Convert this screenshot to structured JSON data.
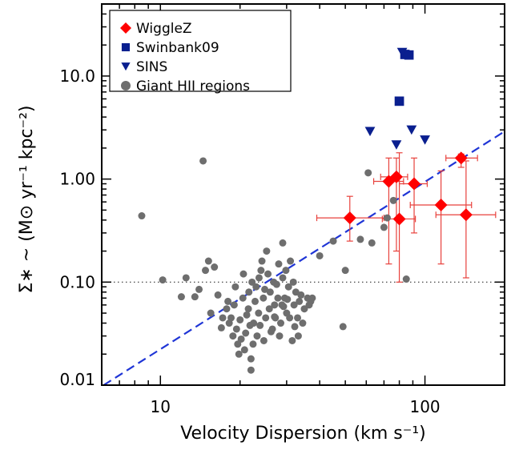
{
  "colors": {
    "wigglez": "#ff0000",
    "wigglez_errorbar": "#e8413c",
    "swinbank09": "#0a1f8f",
    "sins": "#0a1f8f",
    "giant_hii": "#6e6e6e",
    "fit_line": "#1f35d6",
    "reference_line": "#333333",
    "axes": "#000000"
  },
  "chart_data": {
    "type": "scatter",
    "title": "",
    "xlabel": "Velocity Dispersion (km s⁻¹)",
    "ylabel": "Σ∗ ~ (M⊙ yr⁻¹ kpc⁻²)",
    "x_scale": "log",
    "y_scale": "log",
    "xlim": [
      6,
      200
    ],
    "ylim": [
      0.01,
      50
    ],
    "x_ticks": [
      {
        "value": 10,
        "label": "10"
      },
      {
        "value": 100,
        "label": "100"
      }
    ],
    "y_ticks": [
      {
        "value": 0.01,
        "label": "0.01"
      },
      {
        "value": 0.1,
        "label": "0.10"
      },
      {
        "value": 1,
        "label": "1.00"
      },
      {
        "value": 10,
        "label": "10.0"
      }
    ],
    "grid": false,
    "legend_position": "top-left",
    "legend": [
      {
        "label": "WiggleZ",
        "marker": "diamond",
        "color": "#ff0000"
      },
      {
        "label": "Swinbank09",
        "marker": "square",
        "color": "#0a1f8f"
      },
      {
        "label": "SINS",
        "marker": "triangle-down",
        "color": "#0a1f8f"
      },
      {
        "label": "Giant HII regions",
        "marker": "circle",
        "color": "#6e6e6e"
      }
    ],
    "reference_lines": [
      {
        "type": "horizontal",
        "y": 0.1,
        "style": "dotted",
        "color": "#333333"
      },
      {
        "type": "fit",
        "style": "dashed",
        "color": "#1f35d6",
        "points": [
          [
            6.1,
            0.01
          ],
          [
            200,
            2.9
          ]
        ]
      }
    ],
    "series": [
      {
        "name": "WiggleZ",
        "marker": "diamond",
        "color": "#ff0000",
        "points": [
          {
            "x": 52,
            "y": 0.42,
            "xerr": [
              39,
              70
            ],
            "yerr": [
              0.25,
              0.68
            ]
          },
          {
            "x": 73,
            "y": 0.95,
            "xerr": [
              64,
              83
            ],
            "yerr": [
              0.15,
              1.6
            ]
          },
          {
            "x": 78,
            "y": 1.05,
            "xerr": [
              68,
              86
            ],
            "yerr": [
              0.2,
              1.6
            ]
          },
          {
            "x": 80,
            "y": 0.41,
            "xerr": [
              69,
              92
            ],
            "yerr": [
              0.1,
              1.8
            ]
          },
          {
            "x": 91,
            "y": 0.9,
            "xerr": [
              80,
              102
            ],
            "yerr": [
              0.3,
              1.6
            ]
          },
          {
            "x": 115,
            "y": 0.56,
            "xerr": [
              88,
              150
            ],
            "yerr": [
              0.15,
              1.2
            ]
          },
          {
            "x": 137,
            "y": 1.6,
            "xerr": [
              120,
              158
            ],
            "yerr": [
              1.3,
              1.75
            ]
          },
          {
            "x": 143,
            "y": 0.45,
            "xerr": [
              110,
              185
            ],
            "yerr": [
              0.11,
              1.5
            ]
          }
        ]
      },
      {
        "name": "Swinbank09",
        "marker": "square",
        "color": "#0a1f8f",
        "points": [
          {
            "x": 80,
            "y": 5.7
          },
          {
            "x": 84,
            "y": 16.2
          },
          {
            "x": 87,
            "y": 16.0
          }
        ]
      },
      {
        "name": "SINS",
        "marker": "triangle-down",
        "color": "#0a1f8f",
        "points": [
          {
            "x": 62,
            "y": 2.9
          },
          {
            "x": 78,
            "y": 2.15
          },
          {
            "x": 82,
            "y": 17.0
          },
          {
            "x": 89,
            "y": 3.0
          },
          {
            "x": 100,
            "y": 2.4
          }
        ]
      },
      {
        "name": "Giant HII regions",
        "marker": "circle",
        "color": "#6e6e6e",
        "points": [
          {
            "x": 8.5,
            "y": 0.44
          },
          {
            "x": 14.5,
            "y": 1.5
          },
          {
            "x": 10.2,
            "y": 0.105
          },
          {
            "x": 12.0,
            "y": 0.072
          },
          {
            "x": 12.5,
            "y": 0.11
          },
          {
            "x": 13.5,
            "y": 0.072
          },
          {
            "x": 14.0,
            "y": 0.085
          },
          {
            "x": 14.8,
            "y": 0.13
          },
          {
            "x": 15.2,
            "y": 0.16
          },
          {
            "x": 16.0,
            "y": 0.14
          },
          {
            "x": 16.5,
            "y": 0.075
          },
          {
            "x": 15.5,
            "y": 0.05
          },
          {
            "x": 17.0,
            "y": 0.036
          },
          {
            "x": 17.8,
            "y": 0.055
          },
          {
            "x": 18.2,
            "y": 0.04
          },
          {
            "x": 18.8,
            "y": 0.03
          },
          {
            "x": 19.0,
            "y": 0.06
          },
          {
            "x": 19.6,
            "y": 0.025
          },
          {
            "x": 20.0,
            "y": 0.043
          },
          {
            "x": 20.5,
            "y": 0.07
          },
          {
            "x": 21.0,
            "y": 0.032
          },
          {
            "x": 21.5,
            "y": 0.055
          },
          {
            "x": 22.0,
            "y": 0.018
          },
          {
            "x": 22.0,
            "y": 0.014
          },
          {
            "x": 22.5,
            "y": 0.04
          },
          {
            "x": 23.0,
            "y": 0.09
          },
          {
            "x": 23.5,
            "y": 0.05
          },
          {
            "x": 24.0,
            "y": 0.13
          },
          {
            "x": 24.5,
            "y": 0.07
          },
          {
            "x": 25.0,
            "y": 0.045
          },
          {
            "x": 25.5,
            "y": 0.12
          },
          {
            "x": 26.0,
            "y": 0.08
          },
          {
            "x": 26.5,
            "y": 0.035
          },
          {
            "x": 27.0,
            "y": 0.06
          },
          {
            "x": 27.5,
            "y": 0.095
          },
          {
            "x": 28.0,
            "y": 0.15
          },
          {
            "x": 28.5,
            "y": 0.04
          },
          {
            "x": 29.0,
            "y": 0.11
          },
          {
            "x": 29.5,
            "y": 0.07
          },
          {
            "x": 30.0,
            "y": 0.05
          },
          {
            "x": 30.5,
            "y": 0.09
          },
          {
            "x": 31.0,
            "y": 0.16
          },
          {
            "x": 31.5,
            "y": 0.027
          },
          {
            "x": 32.0,
            "y": 0.06
          },
          {
            "x": 32.5,
            "y": 0.08
          },
          {
            "x": 33.0,
            "y": 0.045
          },
          {
            "x": 33.5,
            "y": 0.065
          },
          {
            "x": 34.0,
            "y": 0.075
          },
          {
            "x": 35.0,
            "y": 0.055
          },
          {
            "x": 36.0,
            "y": 0.07
          },
          {
            "x": 37.0,
            "y": 0.065
          },
          {
            "x": 18.5,
            "y": 0.045
          },
          {
            "x": 19.4,
            "y": 0.035
          },
          {
            "x": 20.2,
            "y": 0.028
          },
          {
            "x": 21.2,
            "y": 0.048
          },
          {
            "x": 22.8,
            "y": 0.065
          },
          {
            "x": 23.8,
            "y": 0.038
          },
          {
            "x": 24.8,
            "y": 0.085
          },
          {
            "x": 25.8,
            "y": 0.055
          },
          {
            "x": 26.8,
            "y": 0.1
          },
          {
            "x": 27.8,
            "y": 0.07
          },
          {
            "x": 28.8,
            "y": 0.06
          },
          {
            "x": 29.8,
            "y": 0.13
          },
          {
            "x": 30.8,
            "y": 0.045
          },
          {
            "x": 31.8,
            "y": 0.1
          },
          {
            "x": 21.8,
            "y": 0.038
          },
          {
            "x": 22.4,
            "y": 0.025
          },
          {
            "x": 23.2,
            "y": 0.03
          },
          {
            "x": 24.2,
            "y": 0.16
          },
          {
            "x": 25.2,
            "y": 0.2
          },
          {
            "x": 19.8,
            "y": 0.02
          },
          {
            "x": 20.8,
            "y": 0.022
          },
          {
            "x": 18.0,
            "y": 0.065
          },
          {
            "x": 17.2,
            "y": 0.045
          },
          {
            "x": 26.2,
            "y": 0.033
          },
          {
            "x": 27.2,
            "y": 0.045
          },
          {
            "x": 28.2,
            "y": 0.03
          },
          {
            "x": 29.2,
            "y": 0.058
          },
          {
            "x": 30.2,
            "y": 0.068
          },
          {
            "x": 32.2,
            "y": 0.037
          },
          {
            "x": 33.2,
            "y": 0.03
          },
          {
            "x": 34.5,
            "y": 0.04
          },
          {
            "x": 36.5,
            "y": 0.06
          },
          {
            "x": 37.5,
            "y": 0.07
          },
          {
            "x": 22.2,
            "y": 0.1
          },
          {
            "x": 23.6,
            "y": 0.11
          },
          {
            "x": 20.6,
            "y": 0.12
          },
          {
            "x": 21.6,
            "y": 0.08
          },
          {
            "x": 19.2,
            "y": 0.09
          },
          {
            "x": 29.0,
            "y": 0.24
          },
          {
            "x": 24.6,
            "y": 0.027
          },
          {
            "x": 40.0,
            "y": 0.18
          },
          {
            "x": 45.0,
            "y": 0.25
          },
          {
            "x": 49.0,
            "y": 0.037
          },
          {
            "x": 50.0,
            "y": 0.13
          },
          {
            "x": 57.0,
            "y": 0.26
          },
          {
            "x": 63.0,
            "y": 0.24
          },
          {
            "x": 70.0,
            "y": 0.34
          },
          {
            "x": 61.0,
            "y": 1.15
          },
          {
            "x": 72.0,
            "y": 0.42
          },
          {
            "x": 76.0,
            "y": 0.62
          },
          {
            "x": 85.0,
            "y": 0.107
          },
          {
            "x": 27.0,
            "y": 0.046
          }
        ]
      }
    ]
  }
}
